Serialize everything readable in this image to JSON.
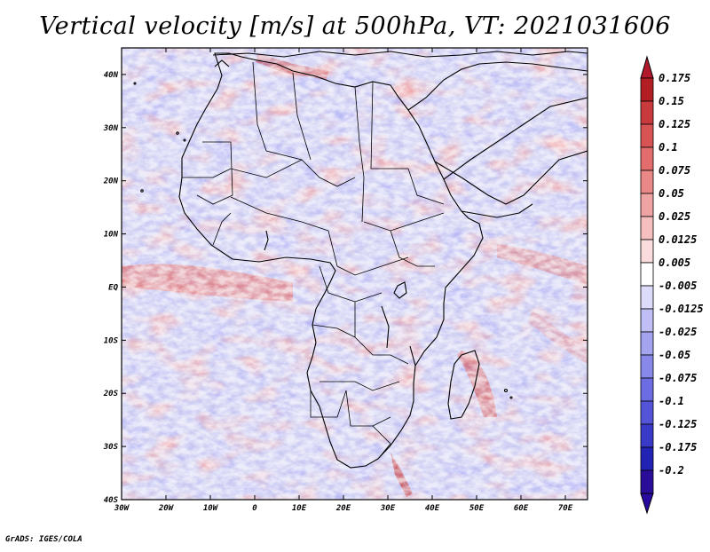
{
  "title": "Vertical velocity [m/s] at 500hPa, VT: 2021031606",
  "credit": "GrADS: IGES/COLA",
  "map": {
    "lat_labels": [
      "40N",
      "30N",
      "20N",
      "10N",
      "EQ",
      "10S",
      "20S",
      "30S",
      "40S"
    ],
    "lat_values": [
      40,
      30,
      20,
      10,
      0,
      -10,
      -20,
      -30,
      -40
    ],
    "lon_labels": [
      "30W",
      "20W",
      "10W",
      "0",
      "10E",
      "20E",
      "30E",
      "40E",
      "50E",
      "60E",
      "70E"
    ],
    "lon_values": [
      -30,
      -20,
      -10,
      0,
      10,
      20,
      30,
      40,
      50,
      60,
      70
    ],
    "lon_range": [
      -30,
      75
    ],
    "lat_range": [
      -40,
      45
    ]
  },
  "colorbar": {
    "levels": [
      "0.175",
      "0.15",
      "0.125",
      "0.1",
      "0.075",
      "0.05",
      "0.025",
      "0.0125",
      "0.005",
      "-0.005",
      "-0.0125",
      "-0.025",
      "-0.05",
      "-0.075",
      "-0.1",
      "-0.125",
      "-0.175",
      "-0.2"
    ],
    "colors": [
      "#b21e23",
      "#c83a3c",
      "#d85454",
      "#e36d6d",
      "#ea8888",
      "#f0a3a3",
      "#f5bfbf",
      "#fadcdc",
      "#ffffff",
      "#dcdcfa",
      "#bfbff5",
      "#a3a3f0",
      "#8888ea",
      "#6d6de3",
      "#5454d8",
      "#3a3ac8",
      "#2222b4",
      "#2a0e9a"
    ],
    "top_color": "#b2182b",
    "bottom_color": "#2a0a9e"
  }
}
